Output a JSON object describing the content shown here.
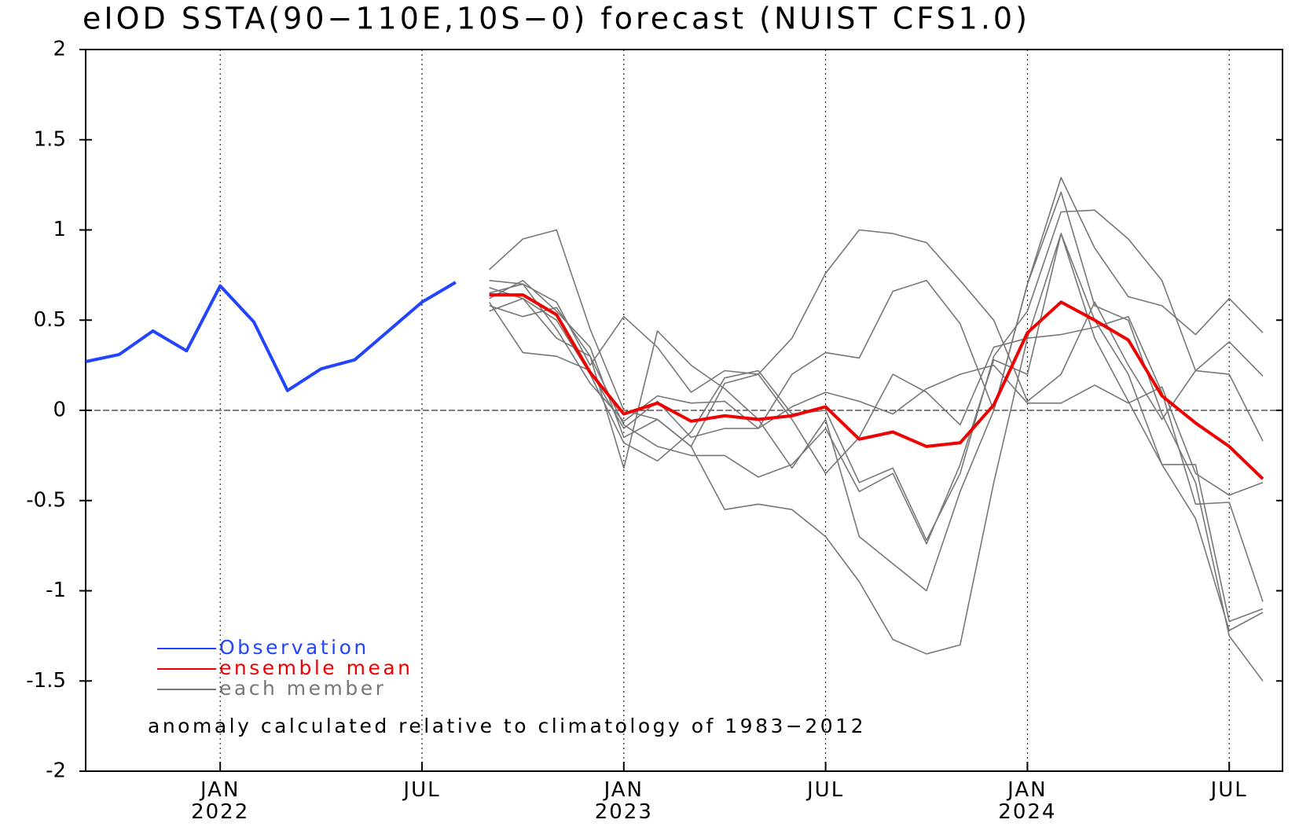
{
  "chart_data": {
    "type": "line",
    "title": "eIOD SSTA(90−110E,10S−0) forecast (NUIST CFS1.0)",
    "annotation": "anomaly calculated relative to climatology of 1983−2012",
    "categories": [
      null,
      null,
      null,
      null,
      "JAN 2022",
      null,
      null,
      null,
      null,
      null,
      "JUL",
      null,
      null,
      null,
      null,
      null,
      "JAN 2023",
      null,
      null,
      null,
      null,
      null,
      "JUL",
      null,
      null,
      null,
      null,
      null,
      "JAN 2024",
      null,
      null,
      null,
      null,
      null,
      "JUL",
      null
    ],
    "ylim": [
      -2,
      2
    ],
    "yticks": [
      -2,
      -1.5,
      -1,
      -0.5,
      0,
      0.5,
      1,
      1.5,
      2
    ],
    "grid": "x",
    "legend": "bottom-left",
    "series": [
      {
        "name": "Observation",
        "color": "#2244ff",
        "values": [
          0.27,
          0.31,
          0.44,
          0.33,
          0.69,
          0.49,
          0.11,
          0.23,
          0.28,
          0.44,
          0.6,
          0.71,
          null,
          null,
          null,
          null,
          null,
          null,
          null,
          null,
          null,
          null,
          null,
          null,
          null,
          null,
          null,
          null,
          null,
          null,
          null,
          null,
          null,
          null,
          null,
          null
        ]
      },
      {
        "name": "ensemble mean",
        "color": "#ee0000",
        "values": [
          null,
          null,
          null,
          null,
          null,
          null,
          null,
          null,
          null,
          null,
          null,
          null,
          0.64,
          0.64,
          0.53,
          0.21,
          -0.02,
          0.04,
          -0.06,
          -0.03,
          -0.05,
          -0.03,
          0.02,
          -0.16,
          -0.12,
          -0.2,
          -0.18,
          0.03,
          0.43,
          0.6,
          0.5,
          0.39,
          0.08,
          -0.07,
          -0.2,
          -0.38
        ]
      },
      {
        "name": "each member",
        "color": "#777777",
        "members": [
          [
            null,
            null,
            null,
            null,
            null,
            null,
            null,
            null,
            null,
            null,
            null,
            null,
            0.78,
            0.95,
            1.0,
            0.45,
            0.0,
            -0.05,
            -0.2,
            -0.55,
            -0.52,
            -0.55,
            -0.7,
            -0.95,
            -1.27,
            -1.35,
            -1.3,
            -0.4,
            0.4,
            0.98,
            0.5,
            0.2,
            -0.3,
            -0.6,
            -1.22,
            -1.12
          ],
          [
            null,
            null,
            null,
            null,
            null,
            null,
            null,
            null,
            null,
            null,
            null,
            null,
            0.72,
            0.7,
            0.6,
            0.25,
            0.52,
            0.35,
            0.1,
            0.22,
            0.2,
            -0.05,
            -0.35,
            -0.15,
            0.2,
            0.1,
            -0.08,
            0.35,
            0.4,
            0.42,
            0.46,
            0.52,
            0.1,
            -0.52,
            -0.51,
            -1.06
          ],
          [
            null,
            null,
            null,
            null,
            null,
            null,
            null,
            null,
            null,
            null,
            null,
            null,
            0.55,
            0.62,
            0.4,
            0.3,
            -0.32,
            0.44,
            0.25,
            0.12,
            -0.05,
            -0.32,
            -0.05,
            -0.7,
            -0.85,
            -1.0,
            -0.45,
            0.0,
            0.7,
            1.29,
            0.9,
            0.63,
            0.58,
            0.42,
            0.62,
            0.43
          ],
          [
            null,
            null,
            null,
            null,
            null,
            null,
            null,
            null,
            null,
            null,
            null,
            null,
            0.62,
            0.72,
            0.55,
            0.35,
            -0.15,
            -0.05,
            -0.2,
            0.15,
            0.2,
            0.4,
            0.76,
            1.0,
            0.98,
            0.93,
            0.72,
            0.5,
            0.05,
            0.2,
            0.6,
            0.25,
            -0.05,
            0.22,
            0.2,
            -0.17
          ],
          [
            null,
            null,
            null,
            null,
            null,
            null,
            null,
            null,
            null,
            null,
            null,
            null,
            0.6,
            0.32,
            0.3,
            0.22,
            -0.1,
            0.05,
            -0.15,
            -0.1,
            -0.1,
            0.2,
            0.32,
            0.29,
            0.66,
            0.72,
            0.48,
            0.0,
            0.7,
            1.21,
            0.58,
            0.5,
            -0.02,
            -0.4,
            -1.25,
            -1.5
          ],
          [
            null,
            null,
            null,
            null,
            null,
            null,
            null,
            null,
            null,
            null,
            null,
            null,
            0.58,
            0.52,
            0.57,
            0.3,
            -0.08,
            -0.2,
            -0.25,
            -0.25,
            -0.37,
            -0.3,
            -0.1,
            -0.45,
            -0.35,
            -0.74,
            -0.3,
            0.28,
            0.2,
            0.98,
            0.4,
            0.05,
            -0.3,
            -0.3,
            -1.17,
            -1.1
          ],
          [
            null,
            null,
            null,
            null,
            null,
            null,
            null,
            null,
            null,
            null,
            null,
            null,
            0.68,
            0.62,
            0.5,
            0.2,
            -0.18,
            -0.28,
            -0.12,
            0.18,
            0.22,
            -0.02,
            0.0,
            -0.4,
            -0.32,
            -0.72,
            -0.35,
            0.3,
            0.55,
            1.1,
            1.11,
            0.95,
            0.72,
            0.22,
            0.38,
            0.19
          ],
          [
            null,
            null,
            null,
            null,
            null,
            null,
            null,
            null,
            null,
            null,
            null,
            null,
            0.65,
            0.7,
            0.45,
            0.15,
            -0.06,
            0.08,
            0.04,
            0.05,
            -0.1,
            0.02,
            0.1,
            0.05,
            -0.02,
            0.12,
            0.2,
            0.25,
            0.04,
            0.04,
            0.14,
            0.04,
            0.13,
            -0.35,
            -0.47,
            -0.4
          ]
        ]
      }
    ]
  }
}
